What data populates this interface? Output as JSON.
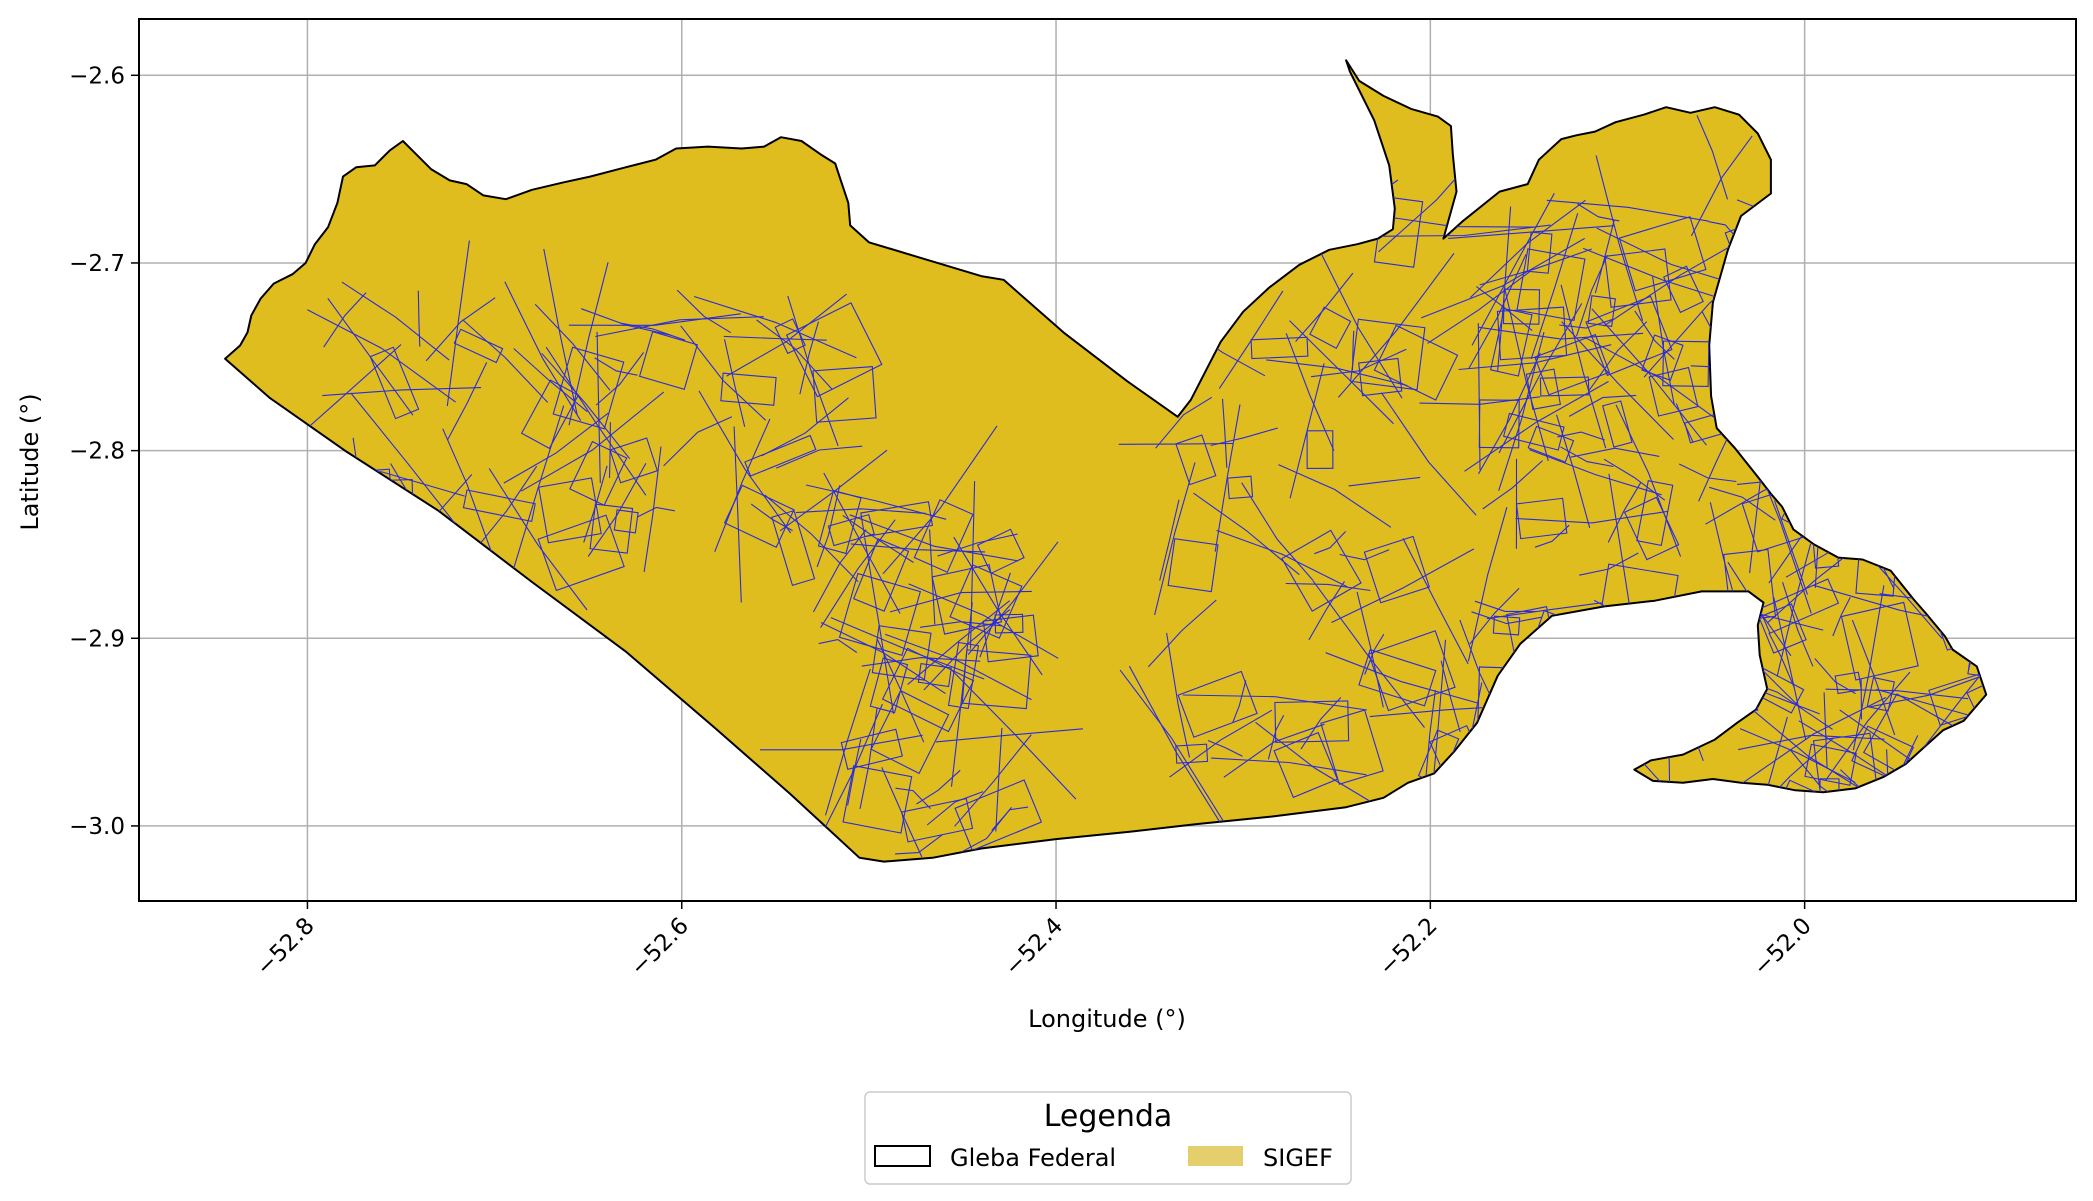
{
  "chart_data": {
    "type": "map",
    "xlabel": "Longitude (°)",
    "ylabel": "Latitude (°)",
    "xlim": [
      -52.89,
      -51.855
    ],
    "ylim": [
      -3.04,
      -2.57
    ],
    "x_ticks": [
      -52.8,
      -52.6,
      -52.4,
      -52.2,
      -52.0
    ],
    "x_tick_labels": [
      "−52.8",
      "−52.6",
      "−52.4",
      "−52.2",
      "−52.0"
    ],
    "y_ticks": [
      -2.6,
      -2.7,
      -2.8,
      -2.9,
      -3.0
    ],
    "y_tick_labels": [
      "−2.6",
      "−2.7",
      "−2.8",
      "−2.9",
      "−3.0"
    ],
    "grid": true,
    "legend": {
      "title": "Legenda",
      "placement": "bottom-center",
      "entries": [
        {
          "label": "Gleba Federal",
          "fill": "none",
          "edge": "#000000"
        },
        {
          "label": "SIGEF",
          "fill": "#e5cf6d",
          "edge": "none"
        }
      ]
    },
    "layers": [
      {
        "name": "Gleba Federal",
        "fill": "#dfbd1f",
        "edge": "#000000",
        "outline": [
          [
            -52.844,
            -2.751
          ],
          [
            -52.836,
            -2.744
          ],
          [
            -52.832,
            -2.737
          ],
          [
            -52.83,
            -2.728
          ],
          [
            -52.825,
            -2.719
          ],
          [
            -52.818,
            -2.711
          ],
          [
            -52.808,
            -2.706
          ],
          [
            -52.801,
            -2.7
          ],
          [
            -52.796,
            -2.69
          ],
          [
            -52.789,
            -2.681
          ],
          [
            -52.784,
            -2.668
          ],
          [
            -52.781,
            -2.654
          ],
          [
            -52.774,
            -2.649
          ],
          [
            -52.764,
            -2.648
          ],
          [
            -52.756,
            -2.64
          ],
          [
            -52.749,
            -2.635
          ],
          [
            -52.743,
            -2.641
          ],
          [
            -52.734,
            -2.65
          ],
          [
            -52.724,
            -2.656
          ],
          [
            -52.715,
            -2.658
          ],
          [
            -52.706,
            -2.664
          ],
          [
            -52.694,
            -2.666
          ],
          [
            -52.68,
            -2.661
          ],
          [
            -52.663,
            -2.657
          ],
          [
            -52.649,
            -2.654
          ],
          [
            -52.63,
            -2.649
          ],
          [
            -52.614,
            -2.645
          ],
          [
            -52.603,
            -2.639
          ],
          [
            -52.586,
            -2.638
          ],
          [
            -52.568,
            -2.639
          ],
          [
            -52.556,
            -2.638
          ],
          [
            -52.547,
            -2.633
          ],
          [
            -52.536,
            -2.635
          ],
          [
            -52.526,
            -2.642
          ],
          [
            -52.518,
            -2.647
          ],
          [
            -52.515,
            -2.656
          ],
          [
            -52.511,
            -2.668
          ],
          [
            -52.51,
            -2.68
          ],
          [
            -52.5,
            -2.689
          ],
          [
            -52.47,
            -2.698
          ],
          [
            -52.44,
            -2.707
          ],
          [
            -52.428,
            -2.709
          ],
          [
            -52.396,
            -2.737
          ],
          [
            -52.362,
            -2.763
          ],
          [
            -52.335,
            -2.782
          ],
          [
            -52.328,
            -2.773
          ],
          [
            -52.312,
            -2.742
          ],
          [
            -52.3,
            -2.726
          ],
          [
            -52.286,
            -2.713
          ],
          [
            -52.27,
            -2.701
          ],
          [
            -52.254,
            -2.693
          ],
          [
            -52.239,
            -2.69
          ],
          [
            -52.228,
            -2.687
          ],
          [
            -52.22,
            -2.682
          ],
          [
            -52.219,
            -2.671
          ],
          [
            -52.222,
            -2.648
          ],
          [
            -52.23,
            -2.624
          ],
          [
            -52.237,
            -2.61
          ],
          [
            -52.243,
            -2.598
          ],
          [
            -52.245,
            -2.592
          ],
          [
            -52.238,
            -2.603
          ],
          [
            -52.225,
            -2.611
          ],
          [
            -52.21,
            -2.618
          ],
          [
            -52.196,
            -2.622
          ],
          [
            -52.189,
            -2.627
          ],
          [
            -52.188,
            -2.642
          ],
          [
            -52.186,
            -2.662
          ],
          [
            -52.193,
            -2.687
          ],
          [
            -52.183,
            -2.678
          ],
          [
            -52.163,
            -2.662
          ],
          [
            -52.148,
            -2.658
          ],
          [
            -52.142,
            -2.645
          ],
          [
            -52.13,
            -2.634
          ],
          [
            -52.122,
            -2.632
          ],
          [
            -52.112,
            -2.63
          ],
          [
            -52.101,
            -2.625
          ],
          [
            -52.086,
            -2.621
          ],
          [
            -52.074,
            -2.617
          ],
          [
            -52.061,
            -2.62
          ],
          [
            -52.048,
            -2.617
          ],
          [
            -52.035,
            -2.621
          ],
          [
            -52.025,
            -2.631
          ],
          [
            -52.018,
            -2.645
          ],
          [
            -52.018,
            -2.663
          ],
          [
            -52.034,
            -2.675
          ],
          [
            -52.041,
            -2.693
          ],
          [
            -52.049,
            -2.721
          ],
          [
            -52.051,
            -2.744
          ],
          [
            -52.05,
            -2.771
          ],
          [
            -52.047,
            -2.788
          ],
          [
            -52.037,
            -2.799
          ],
          [
            -52.025,
            -2.814
          ],
          [
            -52.018,
            -2.823
          ],
          [
            -52.012,
            -2.83
          ],
          [
            -52.006,
            -2.842
          ],
          [
            -51.995,
            -2.85
          ],
          [
            -51.982,
            -2.857
          ],
          [
            -51.969,
            -2.858
          ],
          [
            -51.954,
            -2.864
          ],
          [
            -51.942,
            -2.879
          ],
          [
            -51.935,
            -2.887
          ],
          [
            -51.925,
            -2.899
          ],
          [
            -51.921,
            -2.906
          ],
          [
            -51.908,
            -2.915
          ],
          [
            -51.903,
            -2.93
          ],
          [
            -51.915,
            -2.944
          ],
          [
            -51.926,
            -2.949
          ],
          [
            -51.935,
            -2.957
          ],
          [
            -51.946,
            -2.967
          ],
          [
            -51.958,
            -2.974
          ],
          [
            -51.973,
            -2.98
          ],
          [
            -51.99,
            -2.982
          ],
          [
            -52.005,
            -2.981
          ],
          [
            -52.02,
            -2.978
          ],
          [
            -52.034,
            -2.977
          ],
          [
            -52.049,
            -2.975
          ],
          [
            -52.065,
            -2.977
          ],
          [
            -52.081,
            -2.976
          ],
          [
            -52.091,
            -2.97
          ],
          [
            -52.082,
            -2.965
          ],
          [
            -52.065,
            -2.962
          ],
          [
            -52.048,
            -2.954
          ],
          [
            -52.036,
            -2.945
          ],
          [
            -52.026,
            -2.938
          ],
          [
            -52.02,
            -2.927
          ],
          [
            -52.024,
            -2.909
          ],
          [
            -52.025,
            -2.893
          ],
          [
            -52.022,
            -2.881
          ],
          [
            -52.03,
            -2.875
          ],
          [
            -52.055,
            -2.875
          ],
          [
            -52.08,
            -2.88
          ],
          [
            -52.107,
            -2.883
          ],
          [
            -52.135,
            -2.888
          ],
          [
            -52.152,
            -2.903
          ],
          [
            -52.164,
            -2.92
          ],
          [
            -52.175,
            -2.945
          ],
          [
            -52.187,
            -2.96
          ],
          [
            -52.198,
            -2.972
          ],
          [
            -52.212,
            -2.977
          ],
          [
            -52.225,
            -2.985
          ],
          [
            -52.245,
            -2.99
          ],
          [
            -52.285,
            -2.995
          ],
          [
            -52.325,
            -2.999
          ],
          [
            -52.36,
            -3.003
          ],
          [
            -52.4,
            -3.007
          ],
          [
            -52.44,
            -3.012
          ],
          [
            -52.466,
            -3.017
          ],
          [
            -52.492,
            -3.019
          ],
          [
            -52.505,
            -3.017
          ],
          [
            -52.542,
            -2.983
          ],
          [
            -52.582,
            -2.948
          ],
          [
            -52.63,
            -2.907
          ],
          [
            -52.68,
            -2.87
          ],
          [
            -52.73,
            -2.832
          ],
          [
            -52.78,
            -2.8
          ],
          [
            -52.82,
            -2.772
          ]
        ]
      }
    ]
  }
}
